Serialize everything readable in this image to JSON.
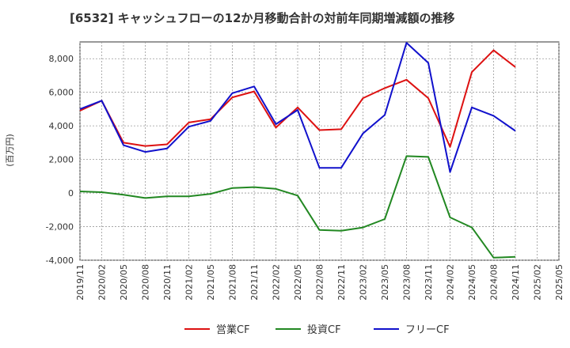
{
  "chart_data": {
    "type": "line",
    "title": "[6532]  キャッシュフローの12か月移動合計の対前年同期増減額の推移",
    "ylabel": "(百万円)",
    "xlabel": "",
    "ylim": [
      -4000,
      9000
    ],
    "yticks": [
      -4000,
      -2000,
      0,
      2000,
      4000,
      6000,
      8000
    ],
    "ytick_labels": [
      "-4,000",
      "-2,000",
      "0",
      "2,000",
      "4,000",
      "6,000",
      "8,000"
    ],
    "grid": true,
    "legend_position": "bottom",
    "x_tick_labels": [
      "2019/11",
      "2020/02",
      "2020/05",
      "2020/08",
      "2020/11",
      "2021/02",
      "2021/05",
      "2021/08",
      "2021/11",
      "2022/02",
      "2022/05",
      "2022/08",
      "2022/11",
      "2023/02",
      "2023/05",
      "2023/08",
      "2023/11",
      "2024/02",
      "2024/05",
      "2024/08",
      "2024/11",
      "2025/02",
      "2025/05"
    ],
    "series": [
      {
        "name": "営業CF",
        "color": "#dd1111",
        "values": [
          4900,
          5500,
          3000,
          2800,
          2900,
          4200,
          4400,
          5700,
          6050,
          3900,
          5100,
          3750,
          3800,
          5650,
          6250,
          6750,
          5650,
          2750,
          7200,
          8500,
          7500
        ]
      },
      {
        "name": "投資CF",
        "color": "#228822",
        "values": [
          100,
          50,
          -100,
          -300,
          -200,
          -200,
          -50,
          300,
          350,
          250,
          -150,
          -2200,
          -2250,
          -2050,
          -1550,
          2200,
          2150,
          -1450,
          -2050,
          -3850,
          -3800
        ]
      },
      {
        "name": "フリーCF",
        "color": "#1111cc",
        "values": [
          5000,
          5500,
          2850,
          2450,
          2650,
          3950,
          4300,
          5950,
          6350,
          4100,
          4950,
          1500,
          1500,
          3550,
          4650,
          8950,
          7750,
          1250,
          5100,
          4600,
          3700
        ]
      }
    ]
  }
}
